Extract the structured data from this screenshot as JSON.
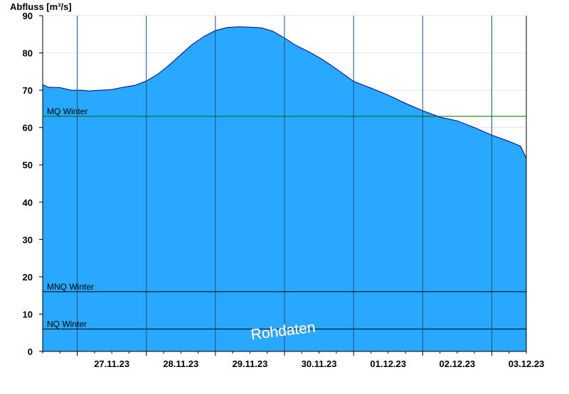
{
  "chart_data": {
    "type": "area",
    "ylabel": "Abfluss [m³/s]",
    "xlabel": "",
    "ylim": [
      0,
      90
    ],
    "xlim": [
      "2023-11-26 12:00",
      "2023-12-03 12:00"
    ],
    "yticks": [
      0,
      10,
      20,
      30,
      40,
      50,
      60,
      70,
      80,
      90
    ],
    "x_tick_labels": [
      "27.11.23",
      "28.11.23",
      "29.11.23",
      "30.11.23",
      "01.12.23",
      "02.12.23",
      "03.12.23"
    ],
    "day_boundaries": [
      "2023-11-27 00:00",
      "2023-11-28 00:00",
      "2023-11-29 00:00",
      "2023-11-30 00:00",
      "2023-12-01 00:00",
      "2023-12-02 00:00",
      "2023-12-03 00:00"
    ],
    "grid": "horizontal-light",
    "series": [
      {
        "color": "#29a8ff",
        "x": [
          "2023-11-26 12:00",
          "2023-11-26 14:00",
          "2023-11-26 18:00",
          "2023-11-26 22:00",
          "2023-11-27 00:00",
          "2023-11-27 02:00",
          "2023-11-27 04:00",
          "2023-11-27 08:00",
          "2023-11-27 12:00",
          "2023-11-27 16:00",
          "2023-11-27 20:00",
          "2023-11-28 00:00",
          "2023-11-28 04:00",
          "2023-11-28 08:00",
          "2023-11-28 12:00",
          "2023-11-28 16:00",
          "2023-11-28 20:00",
          "2023-11-29 00:00",
          "2023-11-29 04:00",
          "2023-11-29 08:00",
          "2023-11-29 12:00",
          "2023-11-29 16:00",
          "2023-11-29 20:00",
          "2023-11-30 00:00",
          "2023-11-30 04:00",
          "2023-11-30 08:00",
          "2023-11-30 12:00",
          "2023-11-30 16:00",
          "2023-11-30 20:00",
          "2023-12-01 00:00",
          "2023-12-01 06:00",
          "2023-12-01 12:00",
          "2023-12-01 18:00",
          "2023-12-02 00:00",
          "2023-12-02 06:00",
          "2023-12-02 12:00",
          "2023-12-02 18:00",
          "2023-12-03 00:00",
          "2023-12-03 06:00",
          "2023-12-03 10:00",
          "2023-12-03 12:00"
        ],
        "values": [
          71.5,
          70.8,
          70.7,
          70.0,
          70.0,
          70.0,
          69.8,
          70.0,
          70.2,
          70.8,
          71.3,
          72.5,
          74.3,
          76.8,
          79.6,
          82.3,
          84.4,
          86.0,
          86.8,
          87.0,
          86.9,
          86.7,
          85.8,
          84.0,
          82.0,
          80.5,
          78.8,
          76.8,
          74.6,
          72.4,
          70.6,
          68.7,
          66.5,
          64.5,
          62.8,
          61.8,
          60.0,
          58.0,
          56.3,
          55.0,
          51.8
        ]
      }
    ],
    "reference_lines": [
      {
        "label": "MQ Winter",
        "value": 63,
        "color": "#006400"
      },
      {
        "label": "MNQ Winter",
        "value": 16,
        "color": "#000000"
      },
      {
        "label": "NQ Winter",
        "value": 6,
        "color": "#000000"
      }
    ],
    "watermark": "Rohdaten"
  }
}
